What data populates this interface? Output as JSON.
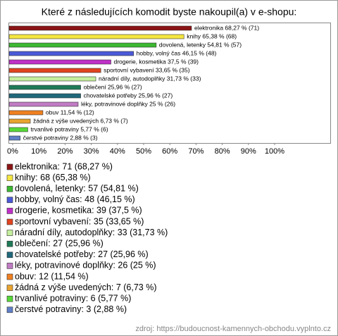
{
  "chart_data": {
    "type": "bar",
    "orientation": "horizontal",
    "title": "Které z následujících komodit byste nakoupil(a) v e-shopu:",
    "categories": [
      "elektronika",
      "knihy",
      "dovolená, letenky",
      "hobby, volný čas",
      "drogerie, kosmetika",
      "sportovní vybavení",
      "náradní díly, autodoplňky",
      "oblečení",
      "chovatelské potřeby",
      "léky, potravinové doplňky",
      "obuv",
      "žádná z výše uvedených",
      "trvanlivé potraviny",
      "čerstvé potraviny"
    ],
    "values": [
      68.27,
      65.38,
      54.81,
      46.15,
      37.5,
      33.65,
      31.73,
      25.96,
      25.96,
      25,
      11.54,
      6.73,
      5.77,
      2.88
    ],
    "value_labels": [
      "elektronika 68,27 % (71)",
      "knihy 65,38 % (68)",
      "dovolená, letenky 54,81 % (57)",
      "hobby, volný čas 46,15 % (48)",
      "drogerie, kosmetika 37,5 % (39)",
      "sportovní vybavení 33,65 % (35)",
      "náradní díly, autodoplňky 31,73 % (33)",
      "oblečení 25,96 % (27)",
      "chovatelské potřeby 25,96 % (27)",
      "léky, potravinové doplňky 25 % (26)",
      "obuv 11,54 % (12)",
      "žádná z výše uvedených 6,73 % (7)",
      "trvanlivé potraviny 5,77 % (6)",
      "čerstvé potraviny 2,88 % (3)"
    ],
    "legend_labels": [
      "elektronika: 71 (68,27 %)",
      "knihy: 68 (65,38 %)",
      "dovolená, letenky: 57 (54,81 %)",
      "hobby, volný čas: 48 (46,15 %)",
      "drogerie, kosmetika: 39 (37,5 %)",
      "sportovní vybavení: 35 (33,65 %)",
      "náradní díly, autodoplňky: 33 (31,73 %)",
      "oblečení: 27 (25,96 %)",
      "chovatelské potřeby: 27 (25,96 %)",
      "léky, potravinové doplňky: 26 (25 %)",
      "obuv: 12 (11,54 %)",
      "žádná z výše uvedených: 7 (6,73 %)",
      "trvanlivé potraviny: 6 (5,77 %)",
      "čerstvé potraviny: 3 (2,88 %)"
    ],
    "colors": [
      "#8b1414",
      "#f4e640",
      "#3cb832",
      "#4a5ad8",
      "#c030c8",
      "#e04420",
      "#c4ee9c",
      "#1f7a58",
      "#20687c",
      "#c07cc4",
      "#f08020",
      "#e8a430",
      "#58d838",
      "#6080c8"
    ],
    "xlim": [
      0,
      100
    ],
    "xticks": [
      {
        "value": 0,
        "label": "0%"
      },
      {
        "value": 10,
        "label": "10%"
      },
      {
        "value": 20,
        "label": "20%"
      },
      {
        "value": 30,
        "label": "30%"
      },
      {
        "value": 40,
        "label": "40%"
      },
      {
        "value": 50,
        "label": "50%"
      },
      {
        "value": 60,
        "label": "60%"
      },
      {
        "value": 70,
        "label": "70%"
      },
      {
        "value": 80,
        "label": "80%"
      },
      {
        "value": 90,
        "label": "90%"
      },
      {
        "value": 100,
        "label": "100%"
      }
    ],
    "source": "zdroj: https://budoucnost-kamennych-obchodu.vyplnto.cz"
  }
}
